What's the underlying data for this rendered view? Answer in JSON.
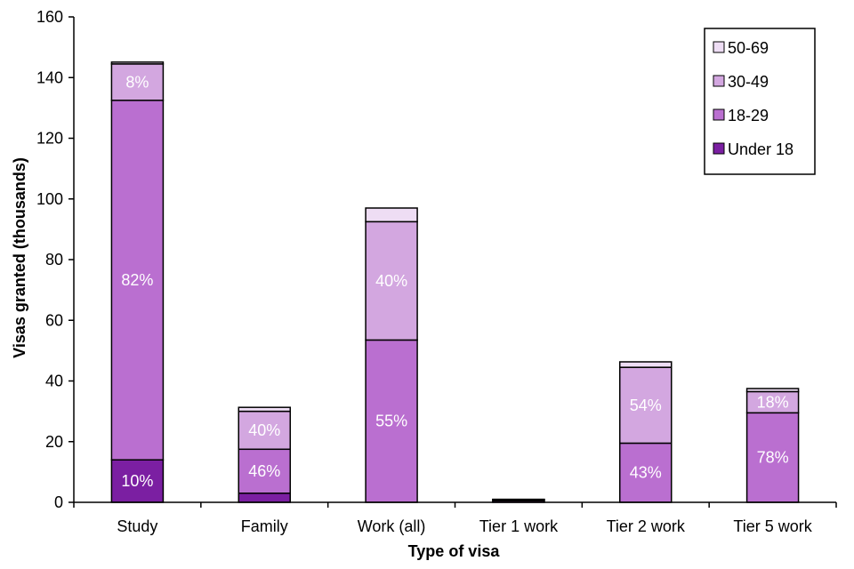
{
  "chart_data": {
    "type": "bar",
    "stacked": true,
    "xlabel": "Type of visa",
    "ylabel": "Visas granted (thousands)",
    "ylim": [
      0,
      160
    ],
    "yticks": [
      0,
      20,
      40,
      60,
      80,
      100,
      120,
      140,
      160
    ],
    "categories": [
      "Study",
      "Family",
      "Work (all)",
      "Tier 1 work",
      "Tier 2 work",
      "Tier 5 work"
    ],
    "series": [
      {
        "name": "Under 18",
        "values": [
          14,
          3,
          0,
          0,
          0,
          0
        ],
        "color": "#7B1FA2",
        "labels": [
          "10%",
          "",
          "",
          "",
          "",
          ""
        ]
      },
      {
        "name": "18-29",
        "values": [
          118.5,
          14.5,
          53.5,
          0.5,
          19.5,
          29.5
        ],
        "color": "#BA6FD0",
        "labels": [
          "82%",
          "46%",
          "55%",
          "",
          "43%",
          "78%"
        ]
      },
      {
        "name": "30-49",
        "values": [
          12,
          12.5,
          39,
          0.4,
          25,
          7
        ],
        "color": "#D3A7E0",
        "labels": [
          "8%",
          "40%",
          "40%",
          "",
          "54%",
          "18%"
        ]
      },
      {
        "name": "50-69",
        "values": [
          0.6,
          1.3,
          4.5,
          0.1,
          1.8,
          1
        ],
        "color": "#EEDDF4",
        "labels": [
          "",
          "",
          "",
          "",
          "",
          ""
        ]
      }
    ],
    "legend_position": "top-right",
    "grid": false
  }
}
